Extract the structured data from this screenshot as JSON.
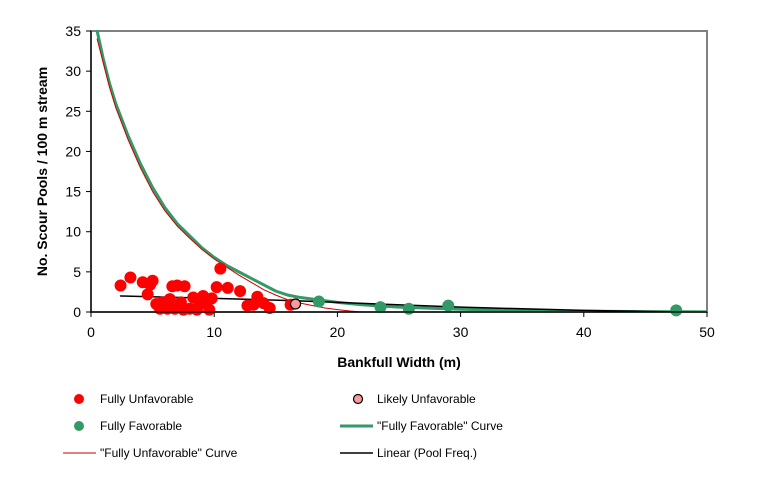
{
  "chart_data": {
    "type": "scatter",
    "xlabel": "Bankfull Width (m)",
    "ylabel": "No. Scour Pools / 100 m stream",
    "xlim": [
      0,
      50
    ],
    "ylim": [
      0,
      35
    ],
    "x_ticks": [
      0,
      10,
      20,
      30,
      40,
      50
    ],
    "y_ticks": [
      0,
      5,
      10,
      15,
      20,
      25,
      30,
      35
    ],
    "grid": false,
    "legend_placement": "bottom",
    "colors": {
      "fully_unfavorable": "#ff0000",
      "likely_unfavorable": "#ff9999",
      "fully_favorable": "#339966",
      "favorable_curve": "#339966",
      "unfavorable_curve": "#cc0000",
      "linear": "#000000",
      "frame": "#808080"
    },
    "series": [
      {
        "name": "Fully Unfavorable",
        "kind": "points",
        "color": "#ff0000",
        "points": [
          [
            2.4,
            3.3
          ],
          [
            3.2,
            4.3
          ],
          [
            4.2,
            3.7
          ],
          [
            4.6,
            2.2
          ],
          [
            4.8,
            3.4
          ],
          [
            5.0,
            3.9
          ],
          [
            5.3,
            1.0
          ],
          [
            5.6,
            0.4
          ],
          [
            5.8,
            1.2
          ],
          [
            6.0,
            1.0
          ],
          [
            6.2,
            0.4
          ],
          [
            6.4,
            1.6
          ],
          [
            6.6,
            3.2
          ],
          [
            6.8,
            0.4
          ],
          [
            7.0,
            3.3
          ],
          [
            7.3,
            1.2
          ],
          [
            7.5,
            0.3
          ],
          [
            7.6,
            3.2
          ],
          [
            8.0,
            0.4
          ],
          [
            8.3,
            1.8
          ],
          [
            8.6,
            0.3
          ],
          [
            8.8,
            1.0
          ],
          [
            9.1,
            2.0
          ],
          [
            9.4,
            1.3
          ],
          [
            9.6,
            0.3
          ],
          [
            9.8,
            1.7
          ],
          [
            10.2,
            3.1
          ],
          [
            10.5,
            5.4
          ],
          [
            11.1,
            3.0
          ],
          [
            12.1,
            2.6
          ],
          [
            12.7,
            0.8
          ],
          [
            13.2,
            0.9
          ],
          [
            13.5,
            1.9
          ],
          [
            14.0,
            1.1
          ],
          [
            14.5,
            0.5
          ],
          [
            16.2,
            0.9
          ]
        ]
      },
      {
        "name": "Likely Unfavorable",
        "kind": "points",
        "color": "#ff9999",
        "points": [
          [
            16.6,
            1.0
          ]
        ]
      },
      {
        "name": "Fully Favorable",
        "kind": "points",
        "color": "#339966",
        "points": [
          [
            18.5,
            1.3
          ],
          [
            23.5,
            0.6
          ],
          [
            25.8,
            0.4
          ],
          [
            29.0,
            0.8
          ],
          [
            47.5,
            0.2
          ]
        ]
      },
      {
        "name": "\"Fully Favorable\" Curve",
        "kind": "line",
        "color": "#339966",
        "x": [
          0.5,
          1,
          1.5,
          2,
          3,
          4,
          5,
          6,
          7,
          8,
          9,
          10,
          11,
          12,
          13,
          14,
          15,
          16,
          17,
          18,
          20,
          22,
          25,
          30,
          35,
          40,
          45,
          50
        ],
        "y": [
          35,
          31.5,
          28.5,
          26,
          22,
          18.5,
          15.5,
          13,
          11,
          9.5,
          8,
          6.8,
          5.8,
          5,
          4.2,
          3.4,
          2.6,
          2.1,
          1.8,
          1.6,
          1.2,
          0.9,
          0.6,
          0.35,
          0.2,
          0.1,
          0.05,
          0.02
        ]
      },
      {
        "name": "\"Fully Unfavorable\" Curve",
        "kind": "line",
        "color": "#cc0000",
        "x": [
          0.5,
          1,
          1.5,
          2,
          3,
          4,
          5,
          6,
          7,
          8,
          9,
          10,
          11,
          12,
          13,
          14,
          15,
          16,
          17,
          18,
          19,
          20,
          21,
          22
        ],
        "y": [
          34,
          31,
          28,
          25.5,
          21.5,
          18,
          15,
          12.6,
          10.7,
          9.2,
          7.8,
          6.6,
          5.6,
          4.6,
          3.7,
          2.8,
          2.1,
          1.5,
          1.1,
          0.8,
          0.5,
          0.3,
          0.12,
          0
        ]
      },
      {
        "name": "Linear (Pool Freq.)",
        "kind": "line",
        "color": "#000000",
        "x": [
          2.4,
          10,
          16.6,
          20,
          30,
          40,
          47.5
        ],
        "y": [
          2.0,
          1.7,
          1.4,
          1.2,
          0.6,
          0.2,
          0.0
        ]
      }
    ],
    "legend": [
      {
        "label": "Fully Unfavorable",
        "symbol": "dot",
        "color": "#ff0000"
      },
      {
        "label": "Likely Unfavorable",
        "symbol": "dot-outline",
        "color": "#ff9999"
      },
      {
        "label": "Fully Favorable",
        "symbol": "dot",
        "color": "#339966"
      },
      {
        "label": "\"Fully Favorable\" Curve",
        "symbol": "thick-line",
        "color": "#339966"
      },
      {
        "label": "\"Fully Unfavorable\" Curve",
        "symbol": "thin-line",
        "color": "#cc0000"
      },
      {
        "label": "Linear (Pool Freq.)",
        "symbol": "line",
        "color": "#000000"
      }
    ]
  }
}
